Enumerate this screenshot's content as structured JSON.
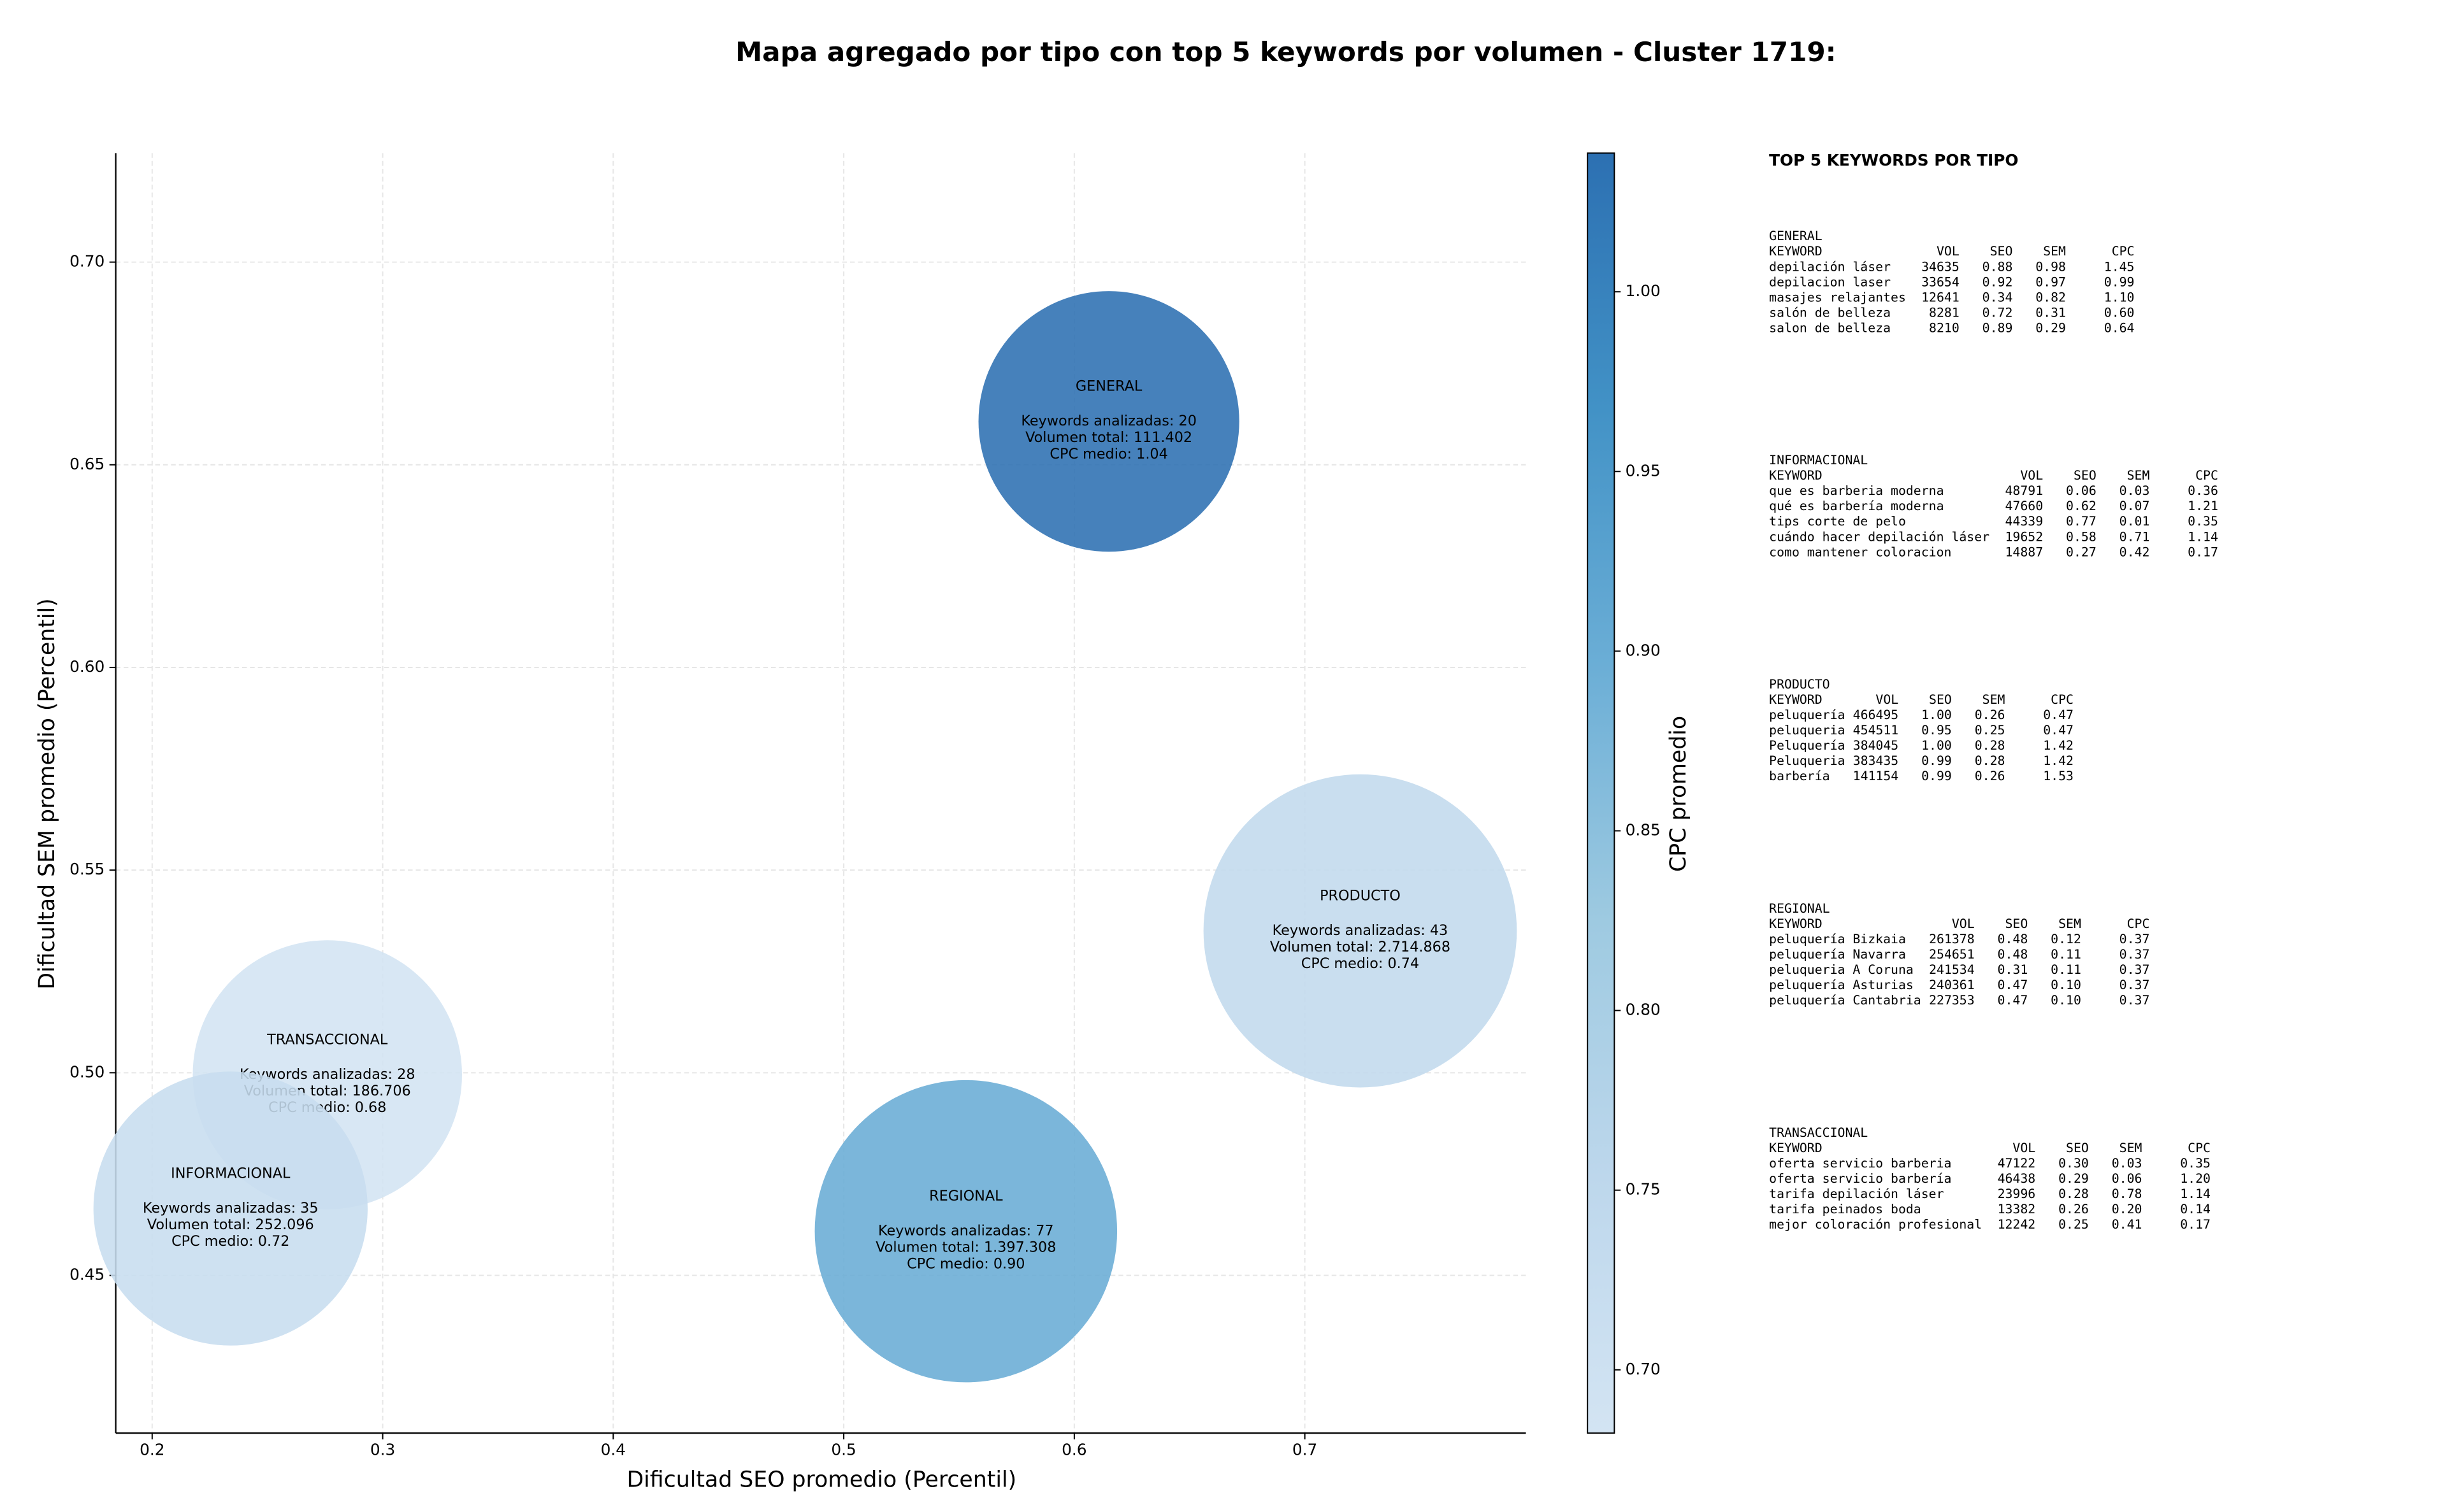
{
  "chart_data": {
    "type": "bubble",
    "title": "Mapa agregado por tipo con top 5 keywords por volumen - Cluster 1719:",
    "xlabel": "Dificultad SEO promedio (Percentil)",
    "ylabel": "Dificultad SEM promedio (Percentil)",
    "colorbar_label": "CPC promedio",
    "xlim": [
      0.1842,
      0.7959
    ],
    "ylim": [
      0.4111,
      0.7269
    ],
    "xticks": [
      0.2,
      0.3,
      0.4,
      0.5,
      0.6,
      0.7
    ],
    "yticks": [
      0.45,
      {
        "value": 0.5,
        "label": "0.50"
      },
      0.55,
      {
        "value": 0.6,
        "label": "0.60"
      },
      0.65,
      {
        "value": 0.7,
        "label": "0.70"
      }
    ],
    "clim": [
      0.6824,
      1.0386
    ],
    "cticks": [
      {
        "value": 0.7,
        "label": "0.70"
      },
      0.75,
      {
        "value": 0.8,
        "label": "0.80"
      },
      0.85,
      {
        "value": 0.9,
        "label": "0.90"
      },
      0.95,
      {
        "value": 1.0,
        "label": "1.00"
      }
    ],
    "grid": true,
    "bubbles": [
      {
        "name": "GENERAL",
        "x": 0.615,
        "y": 0.6607,
        "keywords": 20,
        "volume": 111402,
        "cpc": 1.04,
        "text": [
          "Keywords analizadas: 20",
          "Volumen total: 111.402",
          "CPC medio: 1.04"
        ]
      },
      {
        "name": "PRODUCTO",
        "x": 0.724,
        "y": 0.535,
        "keywords": 43,
        "volume": 2714868,
        "cpc": 0.74,
        "text": [
          "Keywords analizadas: 43",
          "Volumen total: 2.714.868",
          "CPC medio: 0.74"
        ]
      },
      {
        "name": "REGIONAL",
        "x": 0.553,
        "y": 0.4609,
        "keywords": 77,
        "volume": 1397308,
        "cpc": 0.9,
        "text": [
          "Keywords analizadas: 77",
          "Volumen total: 1.397.308",
          "CPC medio: 0.90"
        ]
      },
      {
        "name": "TRANSACCIONAL",
        "x": 0.276,
        "y": 0.4995,
        "keywords": 28,
        "volume": 186706,
        "cpc": 0.68,
        "text": [
          "Keywords analizadas: 28",
          "Volumen total: 186.706",
          "CPC medio: 0.68"
        ]
      },
      {
        "name": "INFORMACIONAL",
        "x": 0.234,
        "y": 0.4665,
        "keywords": 35,
        "volume": 252096,
        "cpc": 0.72,
        "text": [
          "Keywords analizadas: 35",
          "Volumen total: 252.096",
          "CPC medio: 0.72"
        ]
      }
    ]
  },
  "keyword_panel": {
    "title": "TOP 5 KEYWORDS POR TIPO",
    "columns": [
      "KEYWORD",
      "VOL",
      "SEO",
      "SEM",
      "CPC"
    ],
    "sections": [
      {
        "title": "GENERAL",
        "rows": [
          [
            "depilación láser",
            "34635",
            "0.88",
            "0.98",
            "1.45"
          ],
          [
            "depilacion laser",
            "33654",
            "0.92",
            "0.97",
            "0.99"
          ],
          [
            "masajes relajantes",
            "12641",
            "0.34",
            "0.82",
            "1.10"
          ],
          [
            "salón de belleza",
            "8281",
            "0.72",
            "0.31",
            "0.60"
          ],
          [
            "salon de belleza",
            "8210",
            "0.89",
            "0.29",
            "0.64"
          ]
        ]
      },
      {
        "title": "INFORMACIONAL",
        "rows": [
          [
            "que es barberia moderna",
            "48791",
            "0.06",
            "0.03",
            "0.36"
          ],
          [
            "qué es barbería moderna",
            "47660",
            "0.62",
            "0.07",
            "1.21"
          ],
          [
            "tips corte de pelo",
            "44339",
            "0.77",
            "0.01",
            "0.35"
          ],
          [
            "cuándo hacer depilación láser",
            "19652",
            "0.58",
            "0.71",
            "1.14"
          ],
          [
            "como mantener coloracion",
            "14887",
            "0.27",
            "0.42",
            "0.17"
          ]
        ]
      },
      {
        "title": "PRODUCTO",
        "rows": [
          [
            "peluquería",
            "466495",
            "1.00",
            "0.26",
            "0.47"
          ],
          [
            "peluqueria",
            "454511",
            "0.95",
            "0.25",
            "0.47"
          ],
          [
            "Peluquería",
            "384045",
            "1.00",
            "0.28",
            "1.42"
          ],
          [
            "Peluqueria",
            "383435",
            "0.99",
            "0.28",
            "1.42"
          ],
          [
            "barbería",
            "141154",
            "0.99",
            "0.26",
            "1.53"
          ]
        ]
      },
      {
        "title": "REGIONAL",
        "rows": [
          [
            "peluquería Bizkaia",
            "261378",
            "0.48",
            "0.12",
            "0.37"
          ],
          [
            "peluquería Navarra",
            "254651",
            "0.48",
            "0.11",
            "0.37"
          ],
          [
            "peluqueria A Coruna",
            "241534",
            "0.31",
            "0.11",
            "0.37"
          ],
          [
            "peluquería Asturias",
            "240361",
            "0.47",
            "0.10",
            "0.37"
          ],
          [
            "peluquería Cantabria",
            "227353",
            "0.47",
            "0.10",
            "0.37"
          ]
        ]
      },
      {
        "title": "TRANSACCIONAL",
        "rows": [
          [
            "oferta servicio barberia",
            "47122",
            "0.30",
            "0.03",
            "0.35"
          ],
          [
            "oferta servicio barbería",
            "46438",
            "0.29",
            "0.06",
            "1.20"
          ],
          [
            "tarifa depilación láser",
            "23996",
            "0.28",
            "0.78",
            "1.14"
          ],
          [
            "tarifa peinados boda",
            "13382",
            "0.26",
            "0.20",
            "0.14"
          ],
          [
            "mejor coloración profesional",
            "12242",
            "0.25",
            "0.41",
            "0.17"
          ]
        ]
      }
    ]
  }
}
